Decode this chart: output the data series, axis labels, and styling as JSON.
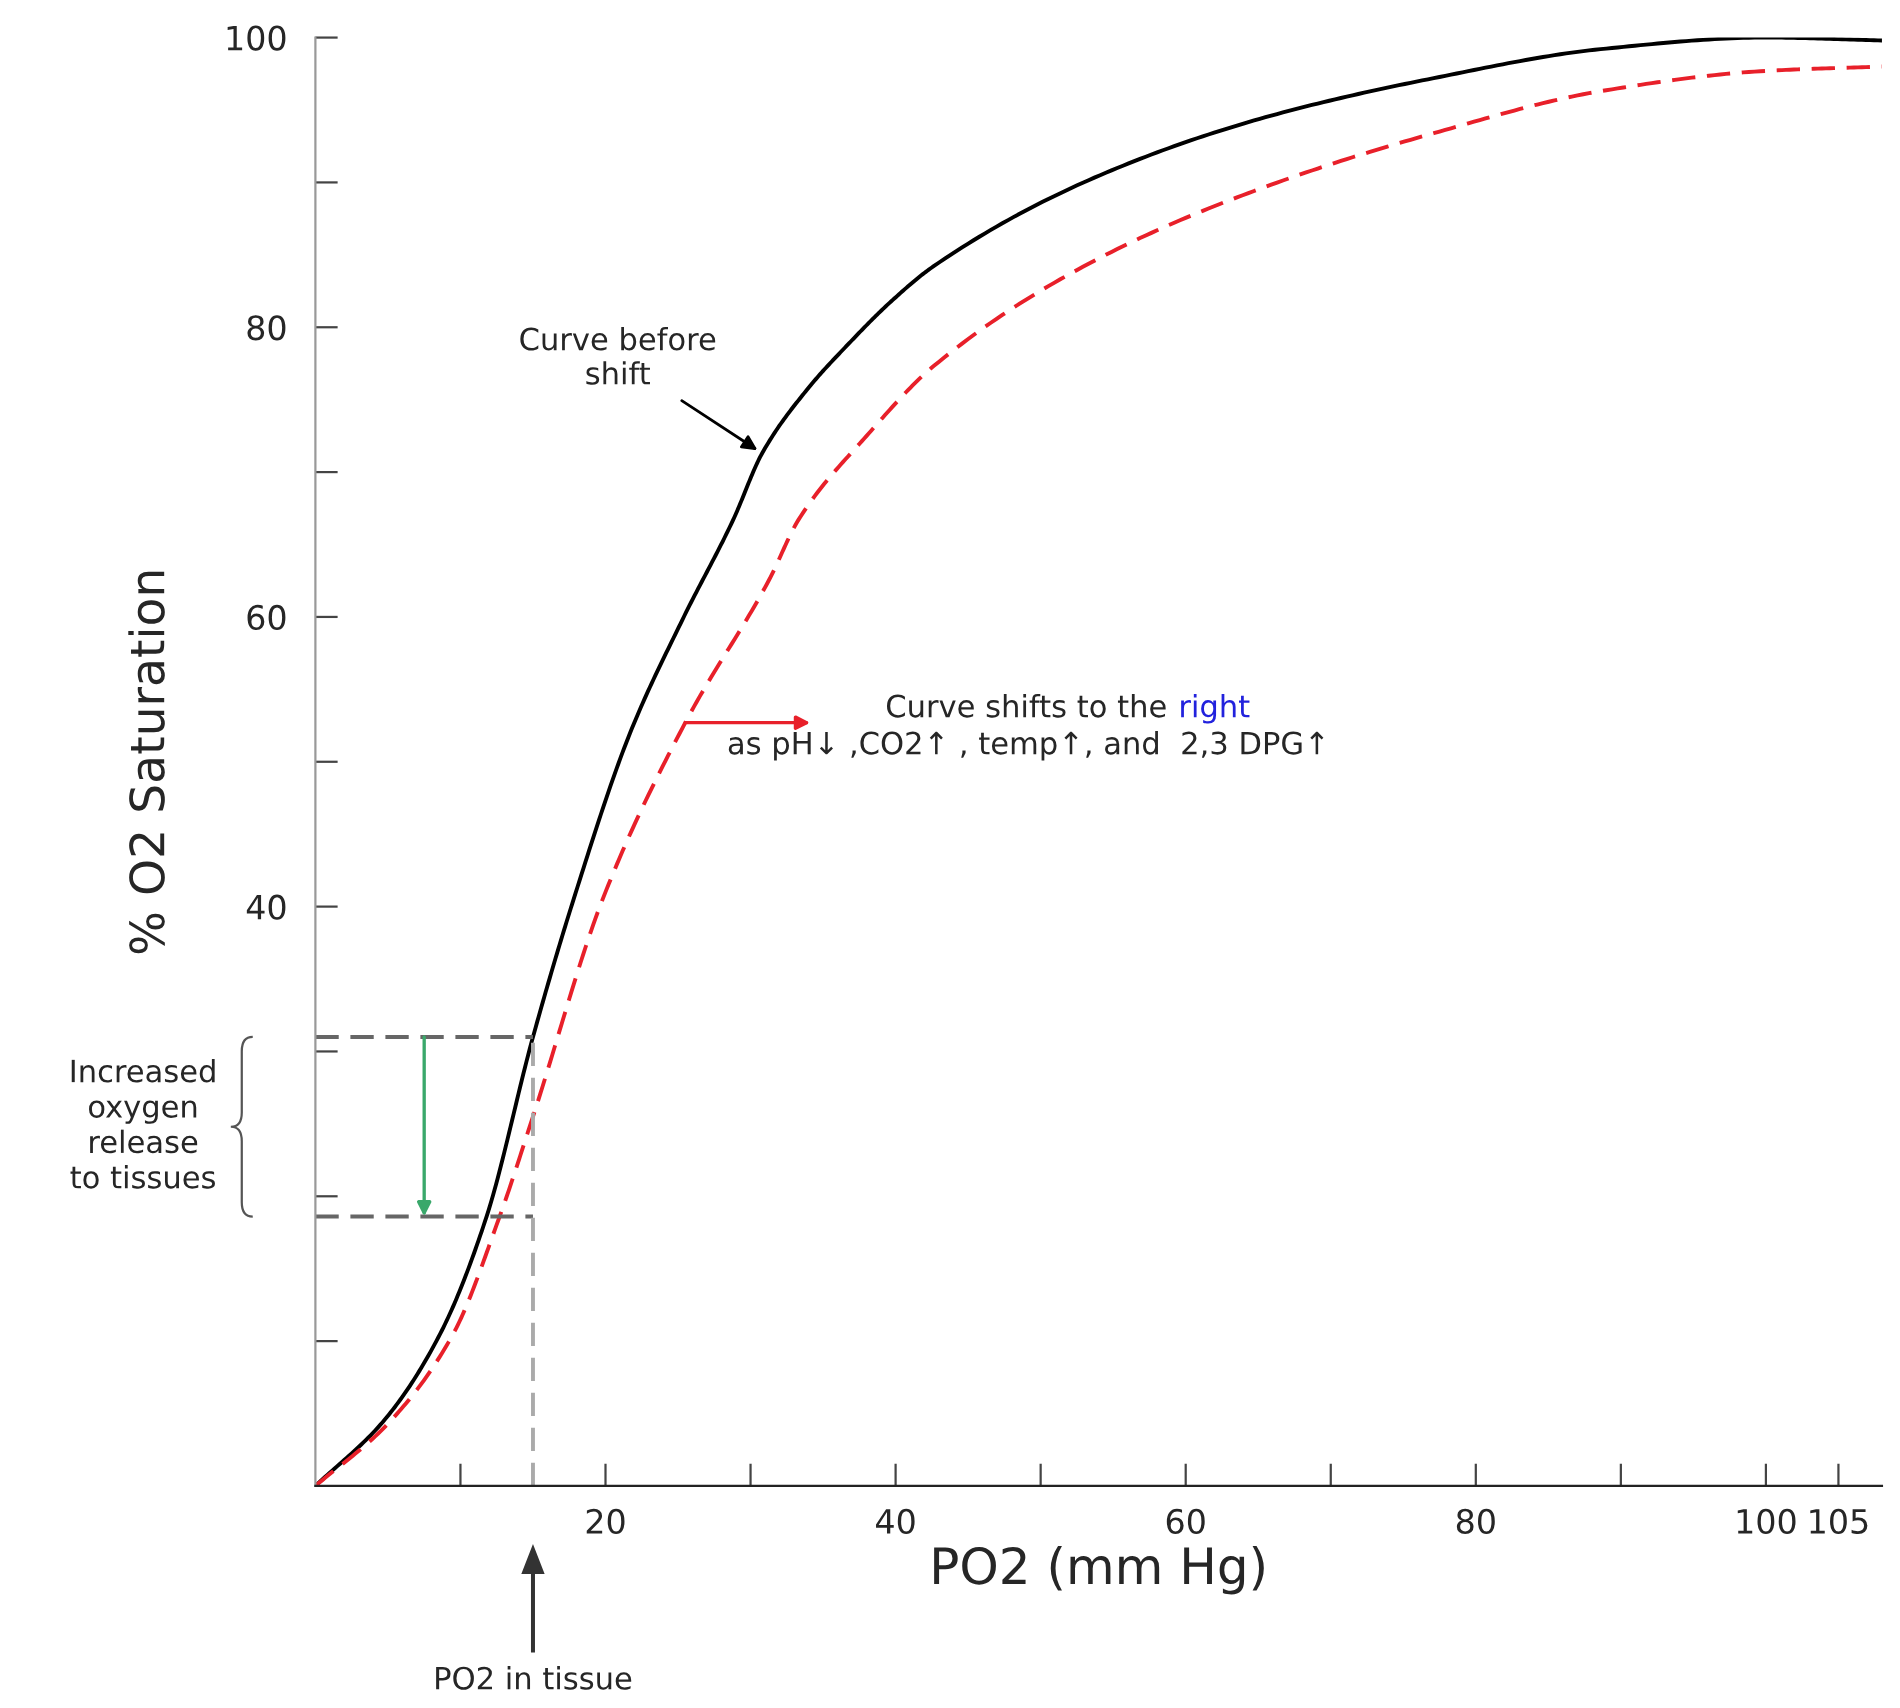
{
  "chart_data": {
    "type": "line",
    "xlabel": "PO2 (mm Hg)",
    "ylabel": "% O2 Saturation",
    "xlim": [
      0,
      108
    ],
    "ylim": [
      0,
      100
    ],
    "xticks": [
      {
        "value": 10,
        "label": null
      },
      20,
      {
        "value": 30,
        "label": null
      },
      40,
      {
        "value": 50,
        "label": null
      },
      60,
      {
        "value": 70,
        "label": null
      },
      80,
      {
        "value": 90,
        "label": null
      },
      100,
      105
    ],
    "yticks": [
      {
        "value": 10,
        "label": null
      },
      {
        "value": 20,
        "label": null
      },
      {
        "value": 30,
        "label": null
      },
      40,
      {
        "value": 50,
        "label": null
      },
      60,
      {
        "value": 70,
        "label": null
      },
      80,
      {
        "value": 90,
        "label": null
      },
      100
    ],
    "series": [
      {
        "color": "#000000",
        "line_style": "solid",
        "x": [
          0,
          4.8,
          8.6,
          11.8,
          15.0,
          17.8,
          21.7,
          25.3,
          28.8,
          30.8,
          33.9,
          36.8,
          39.6,
          42.6,
          54.1,
          65.5,
          77.1,
          88.6,
          100,
          108
        ],
        "values": [
          0,
          4.6,
          10.5,
          18.6,
          31.0,
          40.5,
          52.0,
          59.8,
          66.7,
          71.3,
          75.7,
          78.9,
          81.7,
          84.2,
          90.5,
          94.5,
          97.2,
          99.2,
          100,
          99.8
        ]
      },
      {
        "color": "#e8202a",
        "line_style": "dashed",
        "x": [
          0,
          5.0,
          9.5,
          12.7,
          15.0,
          19.8,
          25.5,
          31.3,
          33.3,
          38.0,
          42.6,
          54.1,
          65.5,
          77.1,
          88.6,
          100,
          108
        ],
        "values": [
          0,
          4.3,
          10.5,
          18.6,
          25.5,
          40.5,
          52.7,
          62.6,
          66.7,
          72.5,
          77.3,
          84.8,
          89.7,
          93.4,
          96.3,
          97.7,
          98.0
        ]
      },
      {
        "color": "#666666",
        "line_style": "dashed",
        "x": [
          0,
          15
        ],
        "values": [
          31.0,
          31.0
        ]
      },
      {
        "color": "#666666",
        "line_style": "dashed",
        "x": [
          0,
          15
        ],
        "values": [
          18.6,
          18.6
        ]
      },
      {
        "color": "#aaaaaa",
        "line_style": "dashed",
        "x": [
          15,
          15
        ],
        "values": [
          0,
          31.0
        ]
      }
    ],
    "annotations": [
      {
        "text": "Curve before\nshift",
        "x": 30.8,
        "y": 71.3
      },
      "Curve shifts to the",
      "right",
      "as pH↓ ,CO2↑ , temp↑, and  2,3 DPG↑",
      "Increased\noxygen\nrelease\nto tissues",
      "PO2 in tissue"
    ]
  }
}
